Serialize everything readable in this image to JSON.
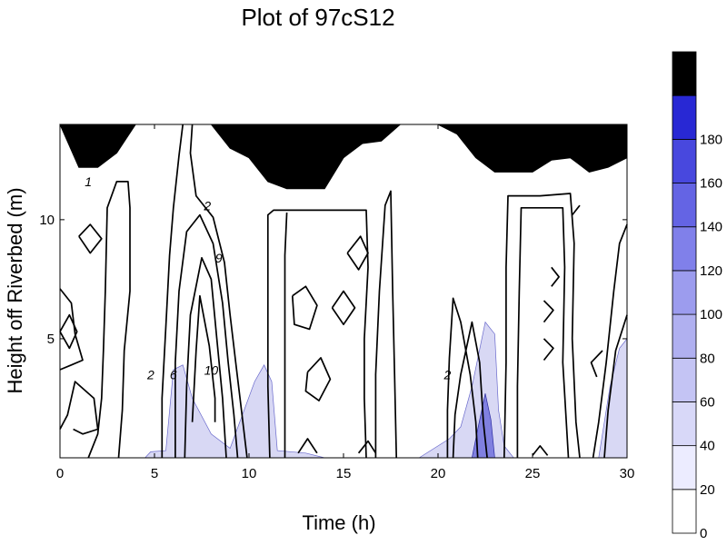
{
  "chart_data": {
    "type": "contour",
    "title": "Plot of 97cS12",
    "xlabel": "Time (h)",
    "ylabel": "Height off Riverbed (m)",
    "xlim": [
      0,
      30
    ],
    "ylim": [
      0,
      14
    ],
    "x_ticks": [
      "0",
      "5",
      "10",
      "15",
      "20",
      "25",
      "30"
    ],
    "y_ticks": [
      "5",
      "10"
    ],
    "colorbar": {
      "levels": [
        0,
        20,
        40,
        60,
        80,
        100,
        120,
        140,
        160,
        180
      ],
      "labels": [
        "0",
        "20",
        "40",
        "60",
        "80",
        "100",
        "120",
        "140",
        "160",
        "180"
      ],
      "colors": [
        "#ffffff",
        "#ececff",
        "#d8d8f8",
        "#c4c4f4",
        "#b0b0f0",
        "#9c9cee",
        "#8080ea",
        "#6464e4",
        "#4848de",
        "#2828d4",
        "#000000"
      ]
    },
    "contour_labels": [
      {
        "text": "1",
        "x": 1.5,
        "y": 11.4
      },
      {
        "text": "2",
        "x": 7.8,
        "y": 10.4
      },
      {
        "text": "9",
        "x": 8.4,
        "y": 8.2
      },
      {
        "text": "2",
        "x": 4.8,
        "y": 3.3
      },
      {
        "text": "6",
        "x": 6.0,
        "y": 3.3
      },
      {
        "text": "10",
        "x": 8.0,
        "y": 3.5
      },
      {
        "text": "2",
        "x": 20.5,
        "y": 3.3
      }
    ],
    "surface_time": [
      0,
      1,
      2,
      3,
      4,
      5,
      6,
      7,
      8,
      9,
      10,
      11,
      12,
      13,
      14,
      15,
      16,
      17,
      18,
      19,
      20,
      21,
      22,
      23,
      24,
      25,
      26,
      27,
      28,
      29,
      30
    ],
    "surface_height": [
      14,
      12.2,
      12.2,
      12.8,
      14,
      14,
      14,
      14,
      14,
      13,
      12.6,
      11.6,
      11.3,
      11.3,
      11.3,
      12.6,
      13.2,
      13.3,
      14,
      14,
      14,
      13.6,
      12.6,
      12,
      12,
      12,
      12.5,
      12.6,
      12,
      12.2,
      12.6
    ]
  }
}
